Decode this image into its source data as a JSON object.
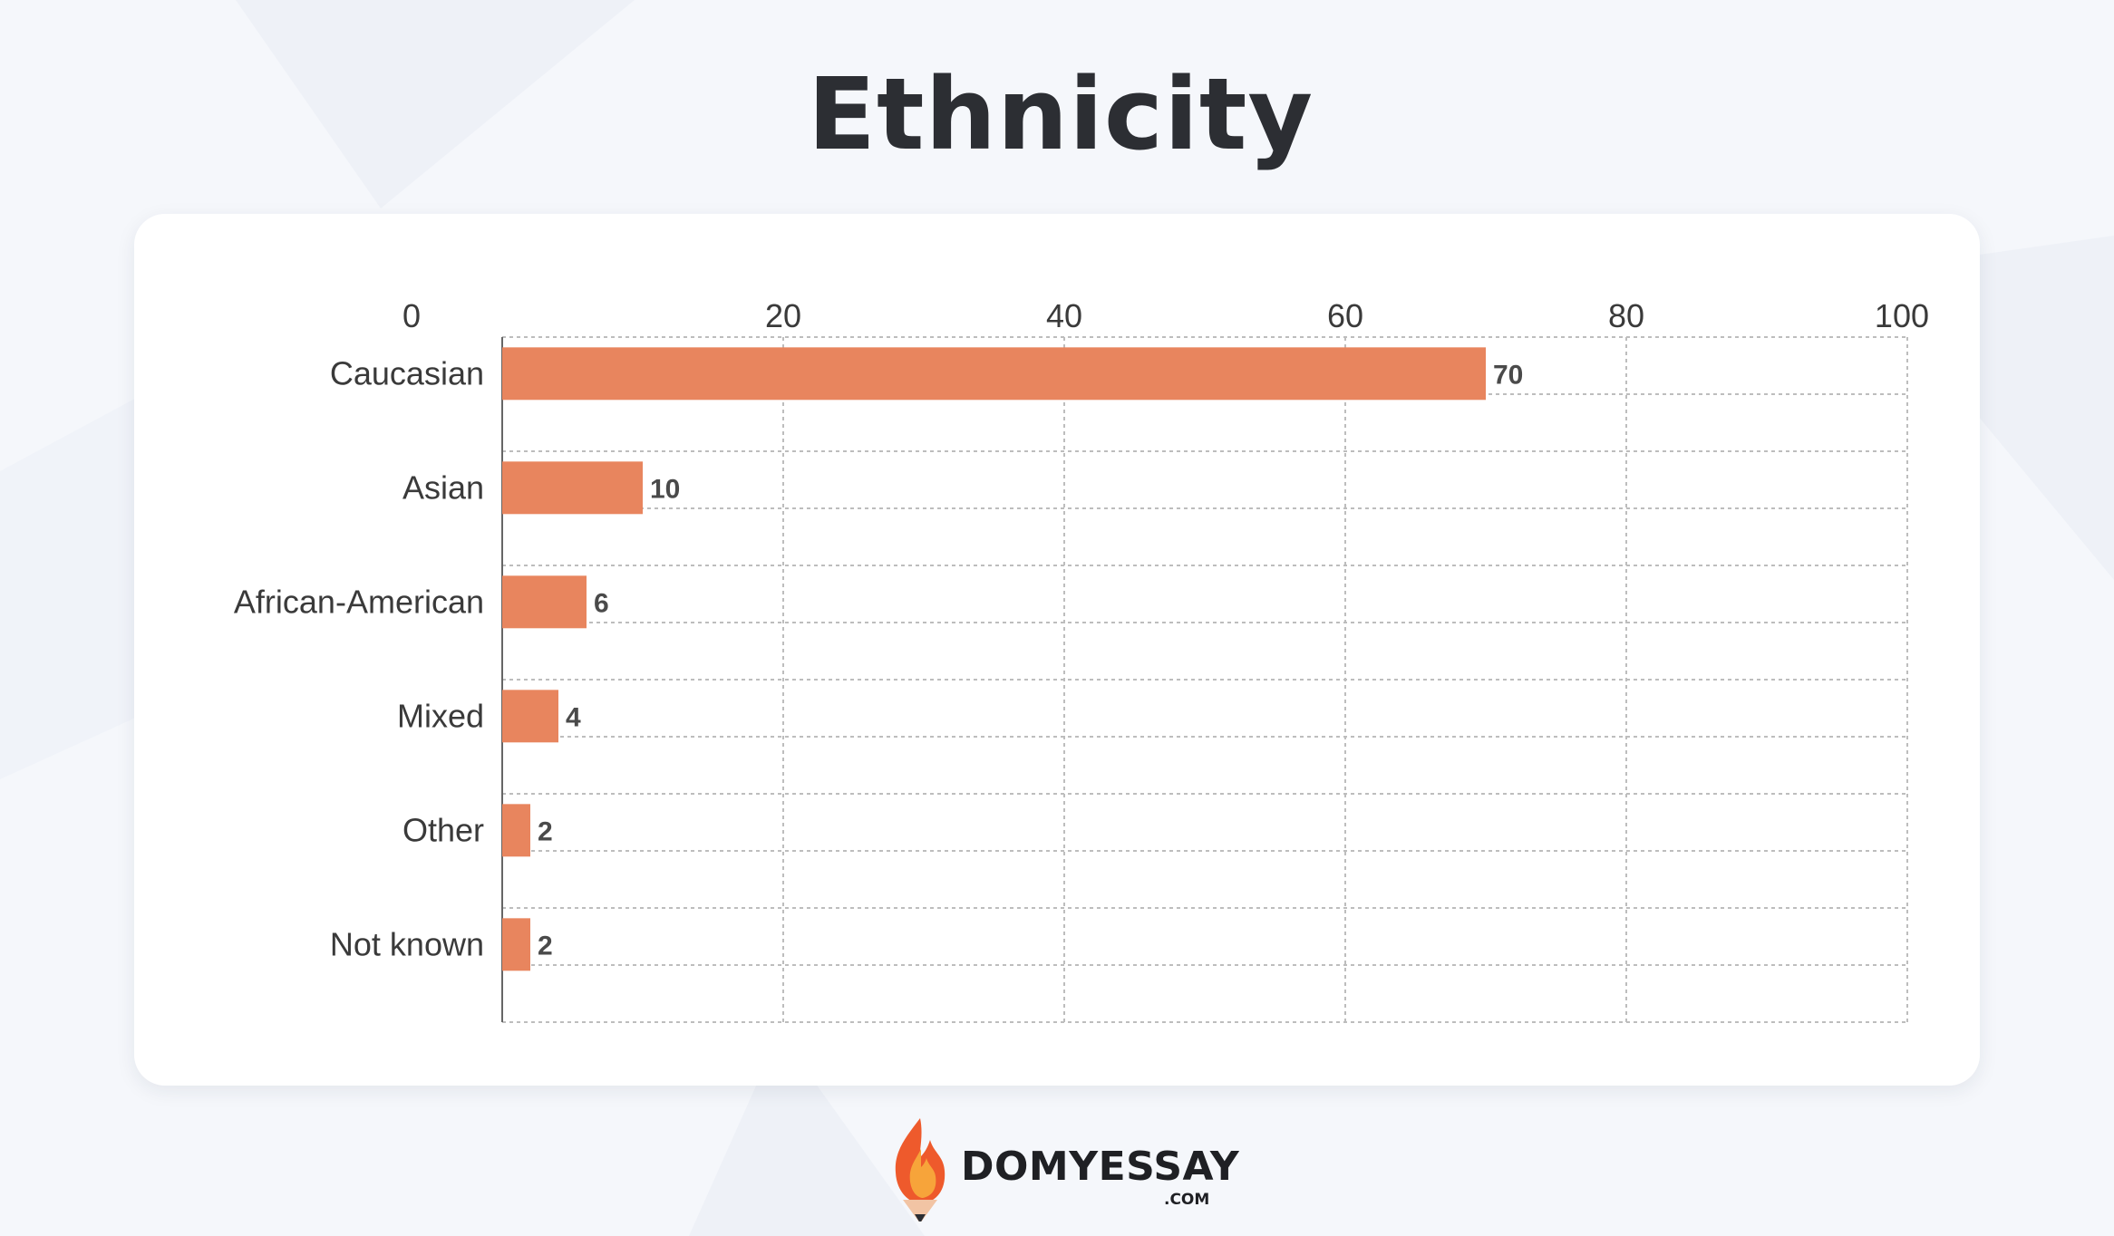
{
  "title": "Ethnicity",
  "colors": {
    "bar": "#e8855e",
    "grid": "#bdbdbd",
    "text": "#3a3a3a",
    "value_text": "#4a4a4a",
    "background": "#f5f7fb"
  },
  "chart_data": {
    "type": "bar",
    "orientation": "horizontal",
    "title": "Ethnicity",
    "categories": [
      "Caucasian",
      "Asian",
      "African-American",
      "Mixed",
      "Other",
      "Not known"
    ],
    "values": [
      70,
      10,
      6,
      4,
      2,
      2
    ],
    "data_labels": [
      "70",
      "10",
      "6",
      "4",
      "2",
      "2"
    ],
    "xlim": [
      0,
      100
    ],
    "xticks": [
      "0",
      "20",
      "40",
      "60",
      "80",
      "100"
    ],
    "x_axis_position": "top",
    "grid": "dashed",
    "legend": "none"
  },
  "logo": {
    "name": "DOMYESSAY",
    "suffix": ".COM",
    "icon": "flame-pencil-icon"
  }
}
